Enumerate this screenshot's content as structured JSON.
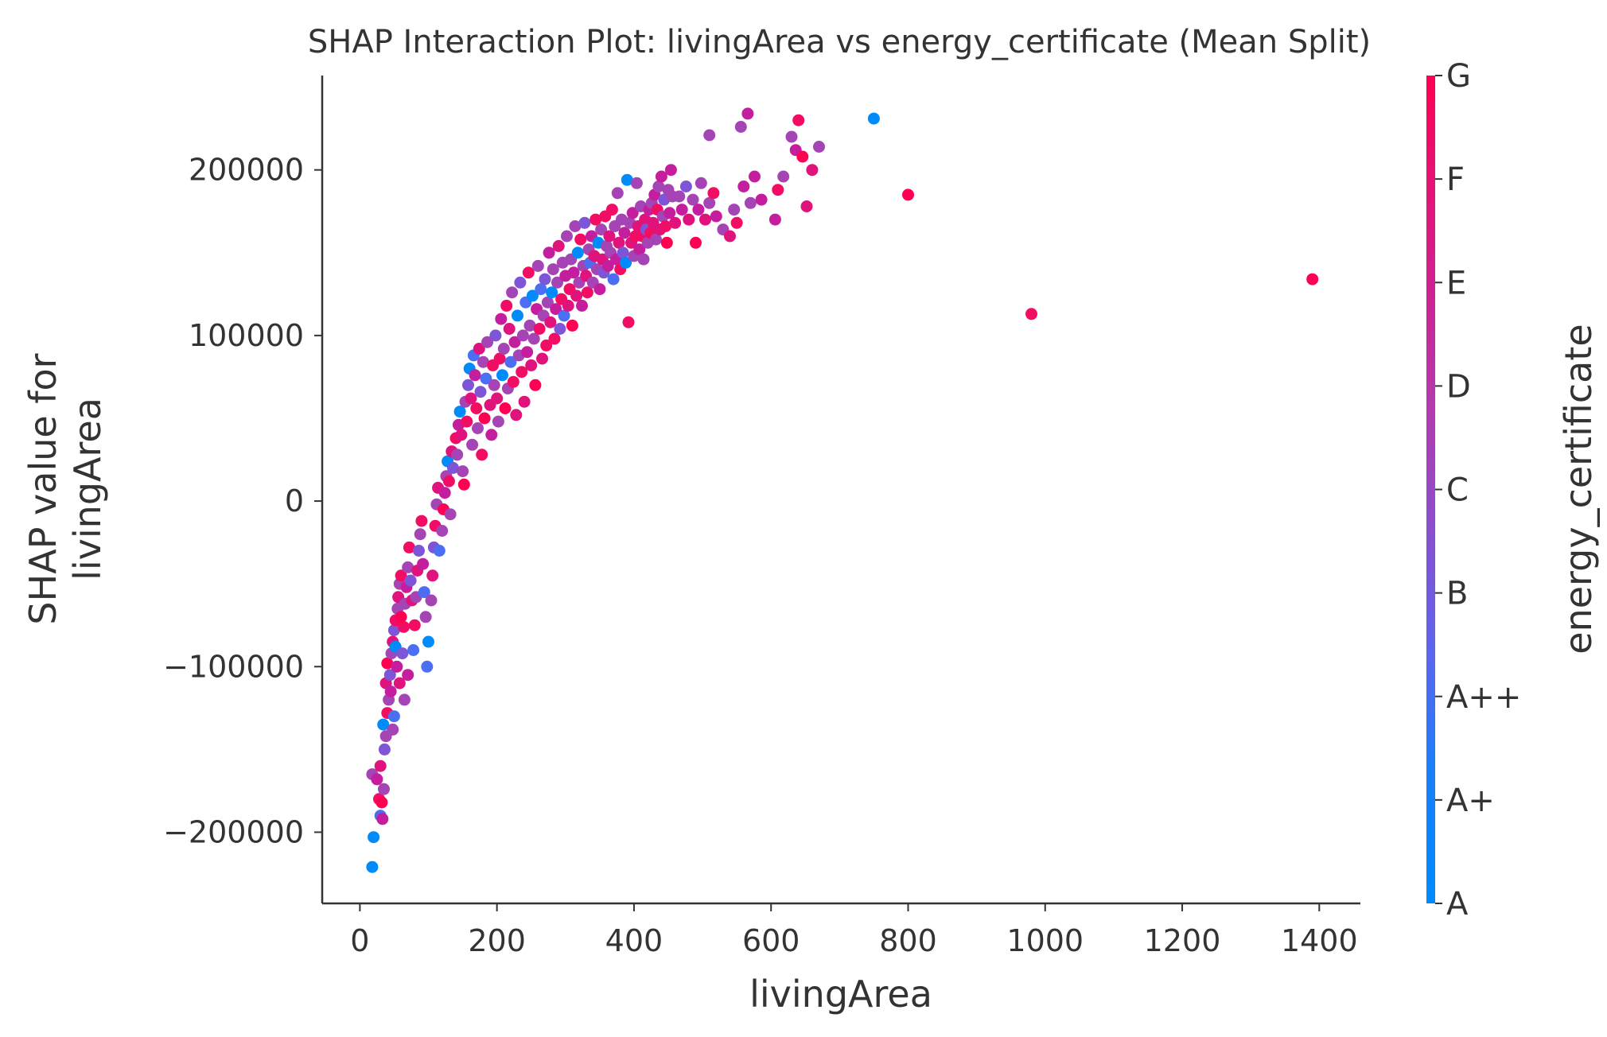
{
  "chart_data": {
    "type": "scatter",
    "title": "SHAP Interaction Plot: livingArea vs energy_certificate (Mean Split)",
    "xlabel": "livingArea",
    "ylabel_lines": [
      "SHAP value for",
      "livingArea"
    ],
    "xlim": [
      -55,
      1460
    ],
    "ylim": [
      -243000,
      257000
    ],
    "xticks": [
      0,
      200,
      400,
      600,
      800,
      1000,
      1200,
      1400
    ],
    "yticks": [
      -200000,
      -100000,
      0,
      100000,
      200000
    ],
    "xtick_labels": [
      "0",
      "200",
      "400",
      "600",
      "800",
      "1000",
      "1200",
      "1400"
    ],
    "ytick_labels": [
      "−200000",
      "−100000",
      "0",
      "100000",
      "200000"
    ],
    "colorbar": {
      "label": "energy_certificate",
      "ticks": [
        "A",
        "A+",
        "A++",
        "B",
        "C",
        "D",
        "E",
        "F",
        "G"
      ],
      "colors": [
        "#008bfb",
        "#4c6ef2",
        "#7e55d7",
        "#a545b5",
        "#c41e9e",
        "#e0127c",
        "#f20d64",
        "#ff0052",
        "#ff0052"
      ],
      "endpoints": [
        "#008bfb",
        "#ff0052"
      ]
    },
    "points": [
      [
        18,
        -221000,
        0
      ],
      [
        20,
        -203000,
        0
      ],
      [
        18,
        -165000,
        3
      ],
      [
        25,
        -168000,
        4
      ],
      [
        28,
        -180000,
        6
      ],
      [
        32,
        -182000,
        7
      ],
      [
        30,
        -190000,
        1
      ],
      [
        33,
        -192000,
        4
      ],
      [
        35,
        -174000,
        3
      ],
      [
        30,
        -160000,
        5
      ],
      [
        36,
        -150000,
        2
      ],
      [
        38,
        -142000,
        3
      ],
      [
        34,
        -135000,
        0
      ],
      [
        40,
        -128000,
        6
      ],
      [
        42,
        -120000,
        3
      ],
      [
        38,
        -110000,
        5
      ],
      [
        44,
        -105000,
        2
      ],
      [
        40,
        -98000,
        7
      ],
      [
        46,
        -92000,
        3
      ],
      [
        48,
        -85000,
        5
      ],
      [
        50,
        -78000,
        2
      ],
      [
        45,
        -115000,
        4
      ],
      [
        52,
        -72000,
        6
      ],
      [
        55,
        -65000,
        3
      ],
      [
        52,
        -88000,
        0
      ],
      [
        56,
        -58000,
        5
      ],
      [
        58,
        -50000,
        3
      ],
      [
        60,
        -45000,
        6
      ],
      [
        54,
        -100000,
        4
      ],
      [
        50,
        -130000,
        1
      ],
      [
        48,
        -138000,
        3
      ],
      [
        58,
        -110000,
        5
      ],
      [
        62,
        -92000,
        2
      ],
      [
        64,
        -76000,
        6
      ],
      [
        66,
        -62000,
        3
      ],
      [
        60,
        -70000,
        7
      ],
      [
        68,
        -52000,
        4
      ],
      [
        70,
        -40000,
        3
      ],
      [
        72,
        -28000,
        6
      ],
      [
        74,
        -48000,
        2
      ],
      [
        76,
        -60000,
        5
      ],
      [
        65,
        -120000,
        3
      ],
      [
        70,
        -105000,
        4
      ],
      [
        78,
        -90000,
        1
      ],
      [
        80,
        -75000,
        6
      ],
      [
        82,
        -58000,
        3
      ],
      [
        84,
        -42000,
        5
      ],
      [
        86,
        -30000,
        2
      ],
      [
        88,
        -20000,
        3
      ],
      [
        90,
        -12000,
        6
      ],
      [
        92,
        -38000,
        4
      ],
      [
        94,
        -55000,
        1
      ],
      [
        96,
        -70000,
        3
      ],
      [
        100,
        -85000,
        0
      ],
      [
        98,
        -100000,
        1
      ],
      [
        104,
        -60000,
        3
      ],
      [
        106,
        -45000,
        5
      ],
      [
        108,
        -28000,
        2
      ],
      [
        110,
        -15000,
        6
      ],
      [
        112,
        -2000,
        3
      ],
      [
        114,
        8000,
        5
      ],
      [
        116,
        -30000,
        1
      ],
      [
        120,
        -18000,
        3
      ],
      [
        122,
        -5000,
        7
      ],
      [
        124,
        5000,
        4
      ],
      [
        126,
        15000,
        3
      ],
      [
        128,
        24000,
        0
      ],
      [
        130,
        12000,
        6
      ],
      [
        132,
        -8000,
        3
      ],
      [
        134,
        30000,
        5
      ],
      [
        136,
        20000,
        2
      ],
      [
        140,
        38000,
        6
      ],
      [
        142,
        28000,
        3
      ],
      [
        144,
        46000,
        4
      ],
      [
        146,
        54000,
        0
      ],
      [
        148,
        40000,
        5
      ],
      [
        150,
        18000,
        3
      ],
      [
        152,
        10000,
        7
      ],
      [
        154,
        60000,
        3
      ],
      [
        156,
        48000,
        6
      ],
      [
        158,
        70000,
        2
      ],
      [
        160,
        80000,
        0
      ],
      [
        162,
        62000,
        5
      ],
      [
        164,
        34000,
        3
      ],
      [
        166,
        88000,
        1
      ],
      [
        168,
        76000,
        4
      ],
      [
        170,
        56000,
        6
      ],
      [
        172,
        44000,
        3
      ],
      [
        174,
        92000,
        5
      ],
      [
        176,
        66000,
        2
      ],
      [
        178,
        28000,
        6
      ],
      [
        180,
        84000,
        3
      ],
      [
        182,
        50000,
        7
      ],
      [
        184,
        74000,
        1
      ],
      [
        186,
        96000,
        3
      ],
      [
        190,
        58000,
        5
      ],
      [
        192,
        40000,
        4
      ],
      [
        194,
        82000,
        6
      ],
      [
        196,
        70000,
        3
      ],
      [
        198,
        100000,
        2
      ],
      [
        200,
        62000,
        5
      ],
      [
        202,
        48000,
        3
      ],
      [
        204,
        86000,
        6
      ],
      [
        206,
        110000,
        4
      ],
      [
        208,
        76000,
        0
      ],
      [
        210,
        92000,
        3
      ],
      [
        212,
        56000,
        7
      ],
      [
        214,
        118000,
        6
      ],
      [
        216,
        68000,
        3
      ],
      [
        218,
        104000,
        5
      ],
      [
        220,
        84000,
        1
      ],
      [
        222,
        126000,
        3
      ],
      [
        224,
        72000,
        6
      ],
      [
        226,
        96000,
        4
      ],
      [
        228,
        52000,
        5
      ],
      [
        230,
        112000,
        0
      ],
      [
        232,
        88000,
        3
      ],
      [
        234,
        132000,
        2
      ],
      [
        236,
        78000,
        6
      ],
      [
        238,
        100000,
        3
      ],
      [
        240,
        60000,
        5
      ],
      [
        242,
        120000,
        1
      ],
      [
        244,
        90000,
        4
      ],
      [
        246,
        138000,
        6
      ],
      [
        248,
        106000,
        3
      ],
      [
        250,
        82000,
        5
      ],
      [
        252,
        124000,
        0
      ],
      [
        254,
        98000,
        3
      ],
      [
        256,
        70000,
        7
      ],
      [
        258,
        116000,
        4
      ],
      [
        260,
        142000,
        3
      ],
      [
        262,
        104000,
        6
      ],
      [
        264,
        128000,
        1
      ],
      [
        266,
        86000,
        5
      ],
      [
        268,
        112000,
        3
      ],
      [
        270,
        134000,
        2
      ],
      [
        272,
        94000,
        6
      ],
      [
        274,
        120000,
        3
      ],
      [
        276,
        150000,
        4
      ],
      [
        278,
        108000,
        5
      ],
      [
        280,
        126000,
        0
      ],
      [
        282,
        140000,
        3
      ],
      [
        284,
        98000,
        6
      ],
      [
        286,
        116000,
        4
      ],
      [
        288,
        132000,
        3
      ],
      [
        290,
        154000,
        5
      ],
      [
        292,
        104000,
        2
      ],
      [
        294,
        122000,
        6
      ],
      [
        296,
        144000,
        3
      ],
      [
        298,
        112000,
        1
      ],
      [
        300,
        136000,
        4
      ],
      [
        302,
        160000,
        3
      ],
      [
        304,
        118000,
        5
      ],
      [
        306,
        128000,
        6
      ],
      [
        308,
        146000,
        3
      ],
      [
        310,
        106000,
        7
      ],
      [
        312,
        138000,
        4
      ],
      [
        314,
        166000,
        3
      ],
      [
        316,
        124000,
        5
      ],
      [
        318,
        150000,
        0
      ],
      [
        320,
        132000,
        3
      ],
      [
        322,
        158000,
        6
      ],
      [
        324,
        118000,
        4
      ],
      [
        326,
        142000,
        3
      ],
      [
        328,
        168000,
        2
      ],
      [
        330,
        136000,
        5
      ],
      [
        332,
        126000,
        6
      ],
      [
        334,
        152000,
        3
      ],
      [
        336,
        144000,
        1
      ],
      [
        338,
        160000,
        4
      ],
      [
        340,
        132000,
        3
      ],
      [
        342,
        148000,
        5
      ],
      [
        344,
        170000,
        6
      ],
      [
        346,
        140000,
        3
      ],
      [
        348,
        156000,
        0
      ],
      [
        350,
        128000,
        4
      ],
      [
        352,
        164000,
        3
      ],
      [
        354,
        146000,
        5
      ],
      [
        356,
        138000,
        2
      ],
      [
        358,
        172000,
        6
      ],
      [
        360,
        154000,
        3
      ],
      [
        362,
        142000,
        4
      ],
      [
        364,
        160000,
        5
      ],
      [
        366,
        150000,
        3
      ],
      [
        368,
        176000,
        6
      ],
      [
        370,
        134000,
        1
      ],
      [
        372,
        166000,
        3
      ],
      [
        374,
        146000,
        4
      ],
      [
        376,
        186000,
        3
      ],
      [
        378,
        156000,
        5
      ],
      [
        380,
        140000,
        6
      ],
      [
        382,
        170000,
        3
      ],
      [
        384,
        150000,
        2
      ],
      [
        386,
        162000,
        4
      ],
      [
        388,
        144000,
        0
      ],
      [
        390,
        194000,
        0
      ],
      [
        392,
        108000,
        6
      ],
      [
        394,
        168000,
        3
      ],
      [
        396,
        156000,
        5
      ],
      [
        398,
        174000,
        4
      ],
      [
        400,
        148000,
        3
      ],
      [
        402,
        160000,
        6
      ],
      [
        404,
        192000,
        3
      ],
      [
        406,
        166000,
        5
      ],
      [
        408,
        152000,
        4
      ],
      [
        410,
        178000,
        3
      ],
      [
        412,
        160000,
        6
      ],
      [
        414,
        146000,
        3
      ],
      [
        416,
        170000,
        5
      ],
      [
        418,
        164000,
        2
      ],
      [
        420,
        156000,
        3
      ],
      [
        422,
        176000,
        4
      ],
      [
        424,
        162000,
        6
      ],
      [
        426,
        180000,
        3
      ],
      [
        428,
        168000,
        5
      ],
      [
        430,
        185000,
        4
      ],
      [
        432,
        158000,
        3
      ],
      [
        434,
        176000,
        6
      ],
      [
        436,
        190000,
        3
      ],
      [
        438,
        164000,
        5
      ],
      [
        440,
        196000,
        4
      ],
      [
        442,
        172000,
        3
      ],
      [
        444,
        182000,
        2
      ],
      [
        446,
        166000,
        6
      ],
      [
        448,
        156000,
        7
      ],
      [
        450,
        188000,
        3
      ],
      [
        452,
        174000,
        4
      ],
      [
        454,
        200000,
        4
      ],
      [
        456,
        184000,
        3
      ],
      [
        460,
        168000,
        5
      ],
      [
        466,
        184000,
        3
      ],
      [
        470,
        176000,
        4
      ],
      [
        476,
        190000,
        2
      ],
      [
        480,
        170000,
        5
      ],
      [
        486,
        182000,
        3
      ],
      [
        490,
        156000,
        7
      ],
      [
        494,
        176000,
        4
      ],
      [
        498,
        192000,
        3
      ],
      [
        504,
        170000,
        5
      ],
      [
        510,
        180000,
        3
      ],
      [
        516,
        186000,
        6
      ],
      [
        520,
        172000,
        4
      ],
      [
        530,
        164000,
        3
      ],
      [
        540,
        160000,
        5
      ],
      [
        546,
        176000,
        3
      ],
      [
        550,
        168000,
        6
      ],
      [
        556,
        226000,
        3
      ],
      [
        560,
        190000,
        4
      ],
      [
        566,
        234000,
        4
      ],
      [
        570,
        180000,
        3
      ],
      [
        576,
        196000,
        4
      ],
      [
        610,
        188000,
        6
      ],
      [
        630,
        220000,
        3
      ],
      [
        636,
        212000,
        4
      ],
      [
        640,
        230000,
        6
      ],
      [
        646,
        208000,
        7
      ],
      [
        652,
        178000,
        5
      ],
      [
        670,
        214000,
        3
      ],
      [
        750,
        231000,
        0
      ],
      [
        800,
        185000,
        7
      ],
      [
        980,
        113000,
        6
      ],
      [
        1390,
        134000,
        7
      ],
      [
        510,
        221000,
        3
      ],
      [
        586,
        182000,
        4
      ],
      [
        606,
        170000,
        4
      ],
      [
        618,
        196000,
        3
      ],
      [
        660,
        200000,
        5
      ]
    ]
  }
}
